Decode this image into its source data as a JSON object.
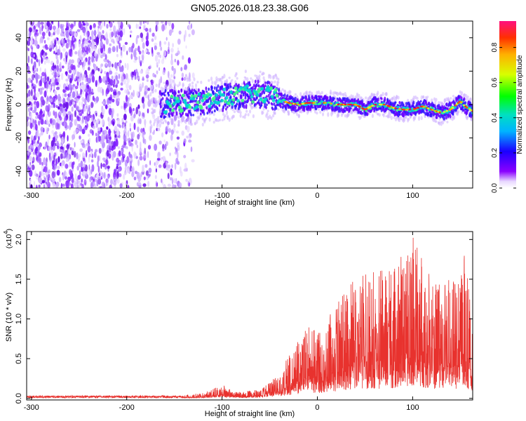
{
  "title": "GN05.2026.018.23.38.G06",
  "colorbar": {
    "label": "Normalized spectral amplitude",
    "ticks": [
      "0.0",
      "0.2",
      "0.4",
      "0.6",
      "0.8"
    ],
    "tick_values": [
      0.0,
      0.2,
      0.4,
      0.6,
      0.8
    ],
    "range": [
      0,
      0.95
    ]
  },
  "chart_data": [
    {
      "type": "heatmap",
      "xlabel": "Height of straight line (km)",
      "ylabel": "Frequency (Hz)",
      "xlim": [
        -305,
        163
      ],
      "ylim": [
        -50,
        50
      ],
      "xticks": [
        -300,
        -200,
        -100,
        0,
        100
      ],
      "xtick_labels": [
        "-300",
        "-200",
        "-100",
        "0",
        "100"
      ],
      "yticks": [
        -40,
        -20,
        0,
        20,
        40
      ],
      "ytick_labels": [
        "-40",
        "-20",
        "0",
        "20",
        "40"
      ],
      "noise_region_x": [
        -305,
        -130
      ],
      "signal_start_x": -165,
      "signal_ridge": {
        "x": [
          -165,
          -140,
          -120,
          -100,
          -80,
          -60,
          -45,
          -40,
          -30,
          -20,
          -10,
          0,
          10,
          20,
          30,
          40,
          50,
          60,
          70,
          80,
          90,
          100,
          110,
          120,
          130,
          140,
          150,
          155,
          163
        ],
        "y": [
          0,
          1,
          2,
          4,
          6,
          6,
          5,
          3,
          1,
          0,
          1,
          1,
          1,
          0,
          0,
          0,
          -3,
          0,
          0,
          -2,
          -3,
          -3,
          -1,
          -3,
          -5,
          -3,
          2,
          -1,
          -4
        ]
      }
    },
    {
      "type": "line",
      "xlabel": "Height of straight line (km)",
      "ylabel": "SNR (10 * v/v)",
      "multiplier_label": "(x10",
      "multiplier_exp": "4",
      "multiplier_close": ")",
      "xlim": [
        -305,
        163
      ],
      "ylim": [
        -0.02,
        2.1
      ],
      "xticks": [
        -300,
        -200,
        -100,
        0,
        100
      ],
      "xtick_labels": [
        "-300",
        "-200",
        "-100",
        "0",
        "100"
      ],
      "yticks": [
        0.0,
        0.5,
        1.0,
        1.5,
        2.0
      ],
      "ytick_labels": [
        "0.0",
        "0.5",
        "1.0",
        "1.5",
        "2.0"
      ],
      "series": [
        {
          "color": "#e8322e",
          "envelope": {
            "x": [
              -305,
              -200,
              -140,
              -120,
              -110,
              -100,
              -90,
              -80,
              -60,
              -50,
              -40,
              -30,
              -20,
              -10,
              0,
              10,
              20,
              30,
              40,
              60,
              80,
              100,
              120,
              140,
              150,
              155,
              160,
              163
            ],
            "y": [
              0.02,
              0.02,
              0.04,
              0.07,
              0.12,
              0.18,
              0.1,
              0.08,
              0.12,
              0.22,
              0.3,
              0.55,
              0.75,
              0.9,
              0.85,
              1.0,
              1.2,
              1.35,
              1.55,
              1.6,
              1.65,
              2.1,
              1.55,
              1.5,
              1.45,
              1.9,
              1.3,
              0.9
            ]
          },
          "base_fraction": 0.25
        }
      ]
    }
  ]
}
